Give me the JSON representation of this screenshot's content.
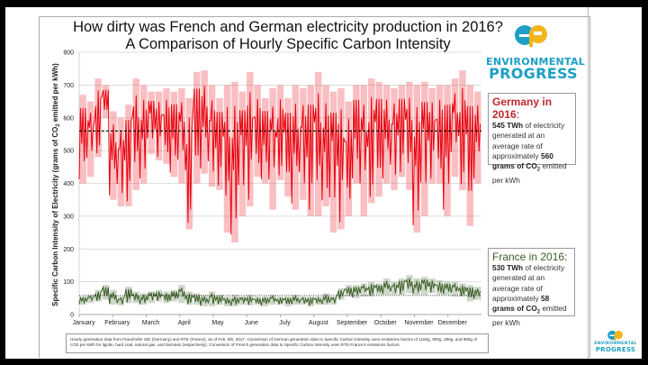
{
  "title_line1": "How dirty was French and German electricity production in 2016?",
  "title_line2": "A Comparison of Hourly Specific Carbon Intensity",
  "logo": {
    "line1": "ENVIRONMENTAL",
    "line2": "PROGRESS",
    "colors": {
      "blue": "#1c9fc4",
      "yellow": "#f2b51c"
    }
  },
  "germany_box": {
    "heading": "Germany in 2016",
    "heading_suffix": ":",
    "twh": "545 TWh",
    "text1": " of electricity generated at an average rate of approximately ",
    "grams": "560 grams of CO",
    "sub": "2",
    "text2": " emitted per kWh",
    "color": "#c0282d"
  },
  "france_box": {
    "heading": "France in 2016",
    "heading_suffix": ":",
    "twh": "530 TWh",
    "text1": " of electricity generated at an average rate of approximately ",
    "grams": "58 grams of CO",
    "sub": "2",
    "text2": " emitted per kWh",
    "color": "#3a5e26"
  },
  "footnote": "Hourly generation data from Fraunhofer ISE (Germany) and RTE (France), as of Feb. 6th, 2017. Conversion of German generation data to Specific Carbon Intensity uses emissions factors of 1150g, 900g, 380g, and 980g of CO2 per kWh for lignite, hard coal, natural gas, and biomass (respectively). Conversion of French generation data to Specific Carbon Intensity uses RTE-France's emissions factors.",
  "chart_data": {
    "type": "line",
    "title": "How dirty was French and German electricity production in 2016? A Comparison of Hourly Specific Carbon Intensity",
    "ylabel": "Specific Carbon Intensity of Electricity (grams of CO2 emitted per kWh)",
    "ylabel_main": "Specific Carbon Intensity of Electricity (grams of CO",
    "ylabel_sub": "2",
    "ylabel_end": " emitted per kWh)",
    "ylim": [
      0,
      800
    ],
    "yticks": [
      0,
      100,
      200,
      300,
      400,
      500,
      600,
      700,
      800
    ],
    "ytick_labels": [
      "0",
      "100",
      "200",
      "300",
      "400",
      "500",
      "600",
      "700",
      "800"
    ],
    "xticks": [
      "January",
      "February",
      "March",
      "April",
      "May",
      "June",
      "July",
      "August",
      "September",
      "October",
      "November",
      "December"
    ],
    "grid": true,
    "resolution_note_shown": "weekly low/high range of hourly values",
    "series": [
      {
        "key": "germany",
        "color": "#e8000b",
        "average": 560,
        "weekly_low_high": [
          [
            400,
            670
          ],
          [
            420,
            650
          ],
          [
            480,
            720
          ],
          [
            600,
            700
          ],
          [
            350,
            620
          ],
          [
            330,
            600
          ],
          [
            330,
            640
          ],
          [
            380,
            720
          ],
          [
            400,
            700
          ],
          [
            490,
            680
          ],
          [
            470,
            680
          ],
          [
            460,
            690
          ],
          [
            420,
            680
          ],
          [
            400,
            690
          ],
          [
            260,
            660
          ],
          [
            400,
            740
          ],
          [
            430,
            745
          ],
          [
            390,
            700
          ],
          [
            380,
            660
          ],
          [
            250,
            700
          ],
          [
            220,
            710
          ],
          [
            300,
            680
          ],
          [
            330,
            740
          ],
          [
            420,
            700
          ],
          [
            400,
            660
          ],
          [
            320,
            690
          ],
          [
            410,
            700
          ],
          [
            360,
            660
          ],
          [
            320,
            700
          ],
          [
            350,
            690
          ],
          [
            300,
            700
          ],
          [
            300,
            740
          ],
          [
            330,
            700
          ],
          [
            250,
            680
          ],
          [
            260,
            690
          ],
          [
            300,
            650
          ],
          [
            400,
            700
          ],
          [
            300,
            700
          ],
          [
            340,
            720
          ],
          [
            360,
            710
          ],
          [
            400,
            700
          ],
          [
            380,
            690
          ],
          [
            420,
            700
          ],
          [
            380,
            710
          ],
          [
            250,
            700
          ],
          [
            300,
            710
          ],
          [
            400,
            690
          ],
          [
            400,
            700
          ],
          [
            300,
            700
          ],
          [
            420,
            720
          ],
          [
            380,
            745
          ],
          [
            270,
            700
          ],
          [
            400,
            680
          ]
        ]
      },
      {
        "key": "france",
        "color": "#3a5e26",
        "average": 58,
        "weekly_low_high": [
          [
            30,
            55
          ],
          [
            35,
            60
          ],
          [
            40,
            75
          ],
          [
            45,
            90
          ],
          [
            30,
            75
          ],
          [
            28,
            55
          ],
          [
            35,
            85
          ],
          [
            35,
            70
          ],
          [
            30,
            65
          ],
          [
            35,
            70
          ],
          [
            40,
            75
          ],
          [
            35,
            70
          ],
          [
            40,
            75
          ],
          [
            35,
            90
          ],
          [
            30,
            70
          ],
          [
            30,
            65
          ],
          [
            25,
            60
          ],
          [
            25,
            70
          ],
          [
            30,
            60
          ],
          [
            25,
            55
          ],
          [
            25,
            60
          ],
          [
            30,
            55
          ],
          [
            28,
            60
          ],
          [
            30,
            55
          ],
          [
            25,
            55
          ],
          [
            30,
            60
          ],
          [
            30,
            55
          ],
          [
            25,
            55
          ],
          [
            30,
            60
          ],
          [
            30,
            55
          ],
          [
            25,
            55
          ],
          [
            30,
            55
          ],
          [
            30,
            65
          ],
          [
            30,
            55
          ],
          [
            45,
            80
          ],
          [
            55,
            90
          ],
          [
            50,
            90
          ],
          [
            55,
            95
          ],
          [
            55,
            100
          ],
          [
            60,
            95
          ],
          [
            60,
            110
          ],
          [
            60,
            100
          ],
          [
            60,
            110
          ],
          [
            65,
            120
          ],
          [
            60,
            110
          ],
          [
            60,
            115
          ],
          [
            65,
            110
          ],
          [
            60,
            105
          ],
          [
            60,
            100
          ],
          [
            55,
            100
          ],
          [
            55,
            95
          ],
          [
            40,
            90
          ],
          [
            45,
            85
          ]
        ]
      }
    ]
  }
}
